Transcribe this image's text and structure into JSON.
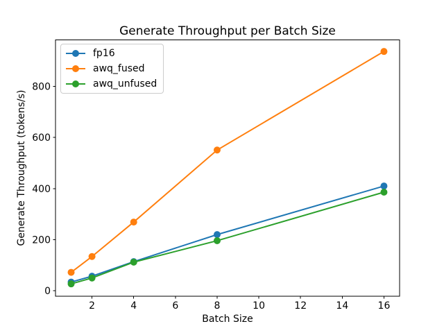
{
  "chart_data": {
    "type": "line",
    "title": "Generate Throughput per Batch Size",
    "xlabel": "Batch Size",
    "ylabel": "Generate Throughput (tokens/s)",
    "x": [
      1,
      2,
      4,
      8,
      16
    ],
    "series": [
      {
        "name": "fp16",
        "color": "#1f77b4",
        "values": [
          34,
          57,
          114,
          220,
          410
        ]
      },
      {
        "name": "awq_fused",
        "color": "#ff7f0e",
        "values": [
          72,
          134,
          269,
          551,
          937
        ]
      },
      {
        "name": "awq_unfused",
        "color": "#2ca02c",
        "values": [
          27,
          50,
          112,
          196,
          386
        ]
      }
    ],
    "xticks": [
      2,
      4,
      6,
      8,
      10,
      12,
      14,
      16
    ],
    "yticks": [
      0,
      200,
      400,
      600,
      800
    ],
    "xlim": [
      0.25,
      16.75
    ],
    "ylim": [
      -22,
      982
    ],
    "grid": false,
    "marker": "o",
    "line_width": 2,
    "marker_radius": 5,
    "legend": {
      "position": "upper left",
      "border_color": "#cccccc"
    },
    "axis_color": "#000000",
    "background": "#ffffff"
  }
}
